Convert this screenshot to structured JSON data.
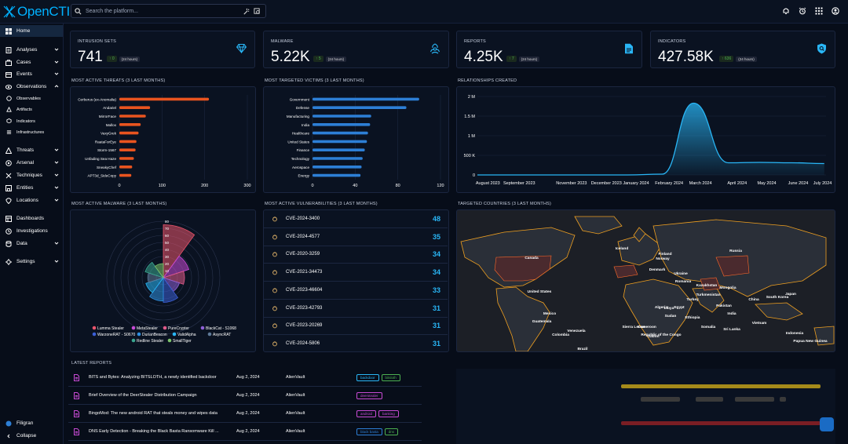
{
  "app": {
    "name": "OpenCTI"
  },
  "search": {
    "placeholder": "Search the platform..."
  },
  "icons": {
    "logo": "opencti-logo-icon",
    "bell": "bell-icon",
    "alarm": "alarm-icon",
    "apps": "apps-grid-icon",
    "user": "user-icon"
  },
  "colors": {
    "accent": "#00b1ff",
    "orange": "#e9541f",
    "blue": "#2d7fd6",
    "green": "#4caf50",
    "cyan": "#29b6f6"
  },
  "sidebar": {
    "items": [
      {
        "label": "Home",
        "icon": "home-icon"
      },
      {
        "label": "Analyses",
        "icon": "analyses-icon"
      },
      {
        "label": "Cases",
        "icon": "cases-icon"
      },
      {
        "label": "Events",
        "icon": "events-icon"
      },
      {
        "label": "Observations",
        "icon": "observations-icon"
      },
      {
        "label": "Observables",
        "icon": "observables-icon"
      },
      {
        "label": "Artifacts",
        "icon": "artifacts-icon"
      },
      {
        "label": "Indicators",
        "icon": "indicators-icon"
      },
      {
        "label": "Infrastructures",
        "icon": "infrastructures-icon"
      },
      {
        "label": "Threats",
        "icon": "threats-icon"
      },
      {
        "label": "Arsenal",
        "icon": "arsenal-icon"
      },
      {
        "label": "Techniques",
        "icon": "techniques-icon"
      },
      {
        "label": "Entities",
        "icon": "entities-icon"
      },
      {
        "label": "Locations",
        "icon": "locations-icon"
      },
      {
        "label": "Dashboards",
        "icon": "dashboards-icon"
      },
      {
        "label": "Investigations",
        "icon": "investigations-icon"
      },
      {
        "label": "Data",
        "icon": "data-icon"
      },
      {
        "label": "Settings",
        "icon": "settings-icon"
      }
    ],
    "footer": {
      "filigran": "Filigran",
      "collapse": "Collapse"
    }
  },
  "stats": [
    {
      "label": "INTRUSION SETS",
      "value": "741",
      "delta": "↑ 0",
      "period": "(24 hours)",
      "icon": "diamond-icon"
    },
    {
      "label": "MALWARE",
      "value": "5.22K",
      "delta": "↑ 5",
      "period": "(24 hours)",
      "icon": "biohazard-icon"
    },
    {
      "label": "REPORTS",
      "value": "4.25K",
      "delta": "↑ 7",
      "period": "(24 hours)",
      "icon": "document-icon"
    },
    {
      "label": "INDICATORS",
      "value": "427.58K",
      "delta": "↑ 636",
      "period": "(24 hours)",
      "icon": "shield-icon"
    }
  ],
  "sections": {
    "threats": "MOST ACTIVE THREATS (3 LAST MONTHS)",
    "victims": "MOST TARGETED VICTIMS (3 LAST MONTHS)",
    "relationships": "RELATIONSHIPS CREATED",
    "malware": "MOST ACTIVE MALWARE (3 LAST MONTHS)",
    "vulns": "MOST ACTIVE VULNERABILITIES (3 LAST MONTHS)",
    "countries": "TARGETED COUNTRIES (3 LAST MONTHS)",
    "reports": "LATEST REPORTS"
  },
  "chart_data": [
    {
      "type": "bar",
      "orientation": "horizontal",
      "title": "MOST ACTIVE THREATS (3 LAST MONTHS)",
      "categories": [
        "Cerberus (ex-Anomalia)",
        "Andariel",
        "MirrorFace",
        "Mallox",
        "VaxyGrek",
        "RaataForEye",
        "Storm-1567",
        "Unfading Sea Haze",
        "SneakyChef",
        "APT3d_SideCopy"
      ],
      "values": [
        210,
        72,
        62,
        50,
        45,
        40,
        38,
        34,
        30,
        28
      ],
      "xlim": [
        0,
        300
      ],
      "xticks": [
        "0",
        "100",
        "200",
        "300"
      ],
      "color": "#e9541f"
    },
    {
      "type": "bar",
      "orientation": "horizontal",
      "title": "MOST TARGETED VICTIMS (3 LAST MONTHS)",
      "categories": [
        "Government",
        "Defense",
        "Manufacturing",
        "India",
        "Healthcare",
        "United States",
        "Finance",
        "Technology",
        "Aerospace",
        "Energy"
      ],
      "values": [
        100,
        88,
        55,
        54,
        52,
        51,
        49,
        47,
        46,
        45
      ],
      "xlim": [
        0,
        120
      ],
      "xticks": [
        "0",
        "40",
        "80",
        "120"
      ],
      "color": "#2d7fd6"
    },
    {
      "type": "area",
      "title": "RELATIONSHIPS CREATED",
      "x": [
        "August 2023",
        "September 2023",
        "November 2023",
        "December 2023",
        "January 2024",
        "February 2024",
        "March 2024",
        "April 2024",
        "May 2024",
        "June 2024",
        "July 2024"
      ],
      "values": [
        0,
        0,
        0,
        0,
        0,
        20000,
        1830000,
        310000,
        320000,
        310000,
        290000
      ],
      "ylim": [
        0,
        2000000
      ],
      "yticks": [
        "0",
        "500 K",
        "1 M",
        "1.5 M",
        "2 M"
      ],
      "color": "#29b6f6"
    },
    {
      "type": "polar-area",
      "title": "MOST ACTIVE MALWARE (3 LAST MONTHS)",
      "rticks": [
        "0",
        "10",
        "20",
        "30",
        "40",
        "50",
        "60",
        "70",
        "80"
      ],
      "series": [
        {
          "name": "Lumma Stealer",
          "value": 75,
          "color": "#e9546b"
        },
        {
          "name": "MetaStealer",
          "value": 38,
          "color": "#c94bd6"
        },
        {
          "name": "PureCrypter",
          "value": 30,
          "color": "#e05a8a"
        },
        {
          "name": "BlackCat - S1068",
          "value": 24,
          "color": "#8e5fd6"
        },
        {
          "name": "WarzoneRAT - S0670",
          "value": 35,
          "color": "#3b5fd6"
        },
        {
          "name": "DurianBeacon",
          "value": 33,
          "color": "#2d8fe0"
        },
        {
          "name": "ValidAlpha",
          "value": 26,
          "color": "#29b6f6"
        },
        {
          "name": "AsyncRAT",
          "value": 22,
          "color": "#5f7a99"
        },
        {
          "name": "Redline Stealer",
          "value": 27,
          "color": "#3aa58f"
        },
        {
          "name": "SmallTiger",
          "value": 20,
          "color": "#7cc46b"
        }
      ]
    }
  ],
  "vulns": [
    {
      "cve": "CVE-2024-3400",
      "count": "48"
    },
    {
      "cve": "CVE-2024-4577",
      "count": "35"
    },
    {
      "cve": "CVE-2020-3259",
      "count": "34"
    },
    {
      "cve": "CVE-2021-34473",
      "count": "34"
    },
    {
      "cve": "CVE-2023-46604",
      "count": "33"
    },
    {
      "cve": "CVE-2023-42793",
      "count": "31"
    },
    {
      "cve": "CVE-2023-20269",
      "count": "31"
    },
    {
      "cve": "CVE-2024-5806",
      "count": "31"
    }
  ],
  "map_labels": [
    "Canada",
    "United States",
    "Mexico",
    "Colombia",
    "Guatemala",
    "Venezuela",
    "Brazil",
    "Iceland",
    "Norway",
    "Finland",
    "Russia",
    "Denmark",
    "Ukraine",
    "Romania",
    "Kazakhstan",
    "Mongolia",
    "Turkey",
    "Turkmenistan",
    "Algeria",
    "Libya",
    "Egypt",
    "Pakistan",
    "China",
    "South Korea",
    "Japan",
    "Sudan",
    "Ethiopia",
    "India",
    "Vietnam",
    "Sierra Leone",
    "Somalia",
    "Sri Lanka",
    "Republic of the Congo",
    "Indonesia",
    "Papua New Guinea",
    "Cameroon",
    "Gabon"
  ],
  "reports": [
    {
      "title": "BITS and Bytes: Analyzing BITSLOTH, a newly identified backdoor",
      "date": "Aug 2, 2024",
      "author": "AlienVault",
      "tags": [
        {
          "label": "backdoor",
          "color": "#29b6f6"
        },
        {
          "label": "bitsloth",
          "color": "#4caf50"
        }
      ]
    },
    {
      "title": "Brief Overview of the DeerStealer Distribution Campaign",
      "date": "Aug 2, 2024",
      "author": "AlienVault",
      "tags": [
        {
          "label": "deerstealer",
          "color": "#c94bd6"
        }
      ]
    },
    {
      "title": "BingoMod: The new android RAT that steals money and wipes data",
      "date": "Aug 2, 2024",
      "author": "AlienVault",
      "tags": [
        {
          "label": "android",
          "color": "#c94bd6"
        },
        {
          "label": "banking",
          "color": "#c94bd6"
        }
      ]
    },
    {
      "title": "DNS Early Detection - Breaking the Black Basta Ransomware Kill ...",
      "date": "Aug 2, 2024",
      "author": "AlienVault",
      "tags": [
        {
          "label": "black basta",
          "color": "#2d7fd6"
        },
        {
          "label": "dns",
          "color": "#4caf50"
        }
      ]
    }
  ]
}
